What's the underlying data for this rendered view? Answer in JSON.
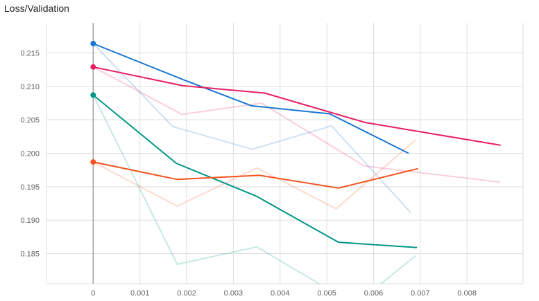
{
  "chart_data": {
    "type": "line",
    "title": "Loss/Validation",
    "xlabel": "",
    "ylabel": "",
    "xlim": [
      -0.001,
      0.0092
    ],
    "ylim": [
      0.1805,
      0.2195
    ],
    "x_ticks": [
      "0",
      "0.001",
      "0.002",
      "0.003",
      "0.004",
      "0.005",
      "0.006",
      "0.007",
      "0.008"
    ],
    "y_ticks": [
      "0.185",
      "0.190",
      "0.195",
      "0.200",
      "0.205",
      "0.210",
      "0.215"
    ],
    "grid": true,
    "series": [
      {
        "color": "#1976d2",
        "smoothed": {
          "x": [
            0,
            0.00193,
            0.00339,
            0.00506,
            0.00675
          ],
          "y": [
            0.2164,
            0.211,
            0.2071,
            0.2059,
            0.2
          ]
        },
        "raw": {
          "x": [
            0,
            0.0017,
            0.0034,
            0.0051,
            0.0068
          ],
          "y": [
            0.2164,
            0.204,
            0.2006,
            0.2041,
            0.1911
          ]
        }
      },
      {
        "color": "#e91e63",
        "smoothed": {
          "x": [
            0,
            0.00192,
            0.00367,
            0.00582,
            0.00872
          ],
          "y": [
            0.2129,
            0.2101,
            0.209,
            0.2046,
            0.2012
          ]
        },
        "raw": {
          "x": [
            0,
            0.0019,
            0.0036,
            0.0058,
            0.0087
          ],
          "y": [
            0.2129,
            0.2058,
            0.2075,
            0.1981,
            0.1957
          ]
        }
      },
      {
        "color": "#009688",
        "smoothed": {
          "x": [
            0,
            0.00178,
            0.00349,
            0.00525,
            0.00693
          ],
          "y": [
            0.2087,
            0.1985,
            0.1936,
            0.1867,
            0.1859
          ]
        },
        "raw": {
          "x": [
            0,
            0.0018,
            0.0035,
            0.0052,
            0.0059,
            0.0069
          ],
          "y": [
            0.2087,
            0.1834,
            0.186,
            0.179,
            0.179,
            0.1847
          ]
        }
      },
      {
        "color": "#f4511e",
        "smoothed": {
          "x": [
            0,
            0.00179,
            0.00356,
            0.00525,
            0.00695
          ],
          "y": [
            0.1987,
            0.1961,
            0.1967,
            0.1948,
            0.1977
          ]
        },
        "raw": {
          "x": [
            0,
            0.0018,
            0.0035,
            0.0052,
            0.0069
          ],
          "y": [
            0.1987,
            0.1921,
            0.1978,
            0.1917,
            0.202
          ]
        }
      }
    ]
  }
}
